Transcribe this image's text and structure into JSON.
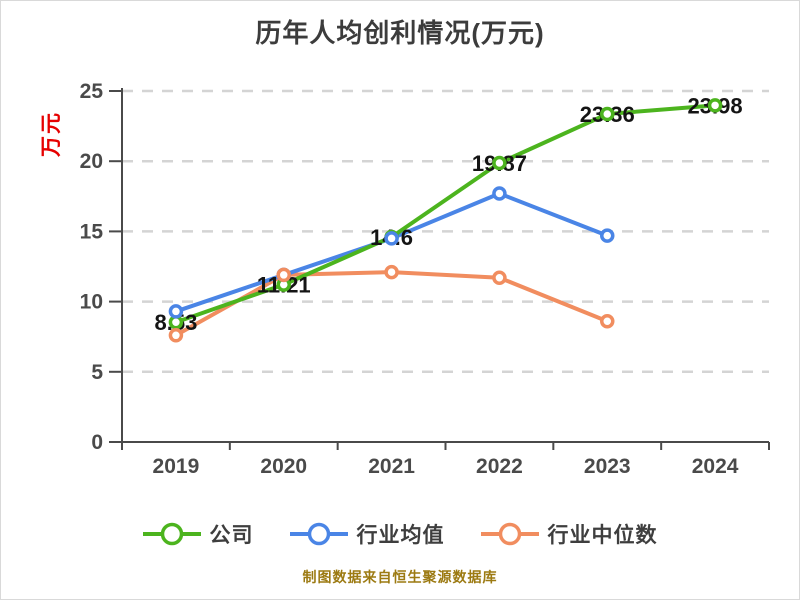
{
  "title": "历年人均创利情况(万元)",
  "y_axis_unit": "万元",
  "footer": "制图数据来自恒生聚源数据库",
  "colors": {
    "company_green": "#4cb41e",
    "industry_avg_blue": "#4a85e6",
    "industry_median_orange": "#f18d5f",
    "gridline": "#d4d4d4",
    "axis": "#4a4a4a",
    "tick_label": "#4a4a4a",
    "data_label": "#141414",
    "title_text": "#3c3c3c",
    "unit_label_red": "#e60000",
    "footer_gold": "#9c7a12",
    "marker_fill": "#ffffff"
  },
  "chart_data": {
    "type": "line",
    "title": "历年人均创利情况(万元)",
    "categories": [
      "2019",
      "2020",
      "2021",
      "2022",
      "2023",
      "2024"
    ],
    "series": [
      {
        "name": "公司",
        "color": "#4cb41e",
        "values": [
          8.53,
          11.21,
          14.6,
          19.87,
          23.36,
          23.98
        ],
        "labels": [
          "8.53",
          "11.21",
          "14.6",
          "19.87",
          "23.36",
          "23.98"
        ]
      },
      {
        "name": "行业均值",
        "color": "#4a85e6",
        "values": [
          9.3,
          11.9,
          14.5,
          17.7,
          14.7,
          null
        ],
        "labels": null
      },
      {
        "name": "行业中位数",
        "color": "#f18d5f",
        "values": [
          7.6,
          11.9,
          12.1,
          11.7,
          8.6,
          null
        ],
        "labels": null
      }
    ],
    "ylabel": "万元",
    "xlabel": "",
    "ylim": [
      0,
      25
    ],
    "yticks": [
      0,
      5,
      10,
      15,
      20,
      25
    ],
    "grid": "horizontal-dashed",
    "legend_position": "bottom",
    "marker_style": "white-filled-circle"
  }
}
